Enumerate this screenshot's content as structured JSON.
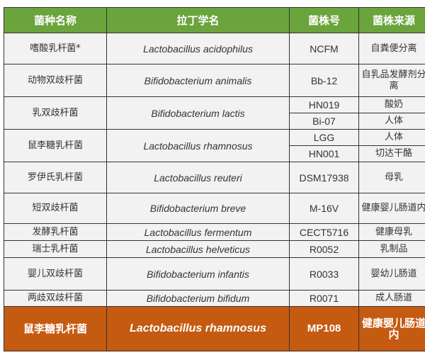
{
  "headers": [
    "菌种名称",
    "拉丁学名",
    "菌株号",
    "菌株来源"
  ],
  "rows": [
    {
      "name": "嗜酸乳杆菌*",
      "latin": "Lactobacillus  acidophilus",
      "strains": [
        {
          "code": "NCFM",
          "source": "自粪便分离"
        }
      ]
    },
    {
      "name": "动物双歧杆菌",
      "latin": "Bifidobacterium animalis",
      "strains": [
        {
          "code": "Bb-12",
          "source": "自乳品发酵剂分离"
        }
      ]
    },
    {
      "name": "乳双歧杆菌",
      "latin": "Bifidobacterium lactis",
      "strains": [
        {
          "code": "HN019",
          "source": "酸奶"
        },
        {
          "code": "Bi-07",
          "source": "人体"
        }
      ]
    },
    {
      "name": "鼠李糖乳杆菌",
      "latin": "Lactobacillus rhamnosus",
      "strains": [
        {
          "code": "LGG",
          "source": "人体"
        },
        {
          "code": "HN001",
          "source": "切达干酪"
        }
      ]
    },
    {
      "name": "罗伊氏乳杆菌",
      "latin": "Lactobacillus reuteri",
      "strains": [
        {
          "code": "DSM17938",
          "source": "母乳"
        }
      ]
    },
    {
      "name": "短双歧杆菌",
      "latin": "Bifidobacterium breve",
      "strains": [
        {
          "code": "M-16V",
          "source": "健康婴儿肠道内"
        }
      ]
    },
    {
      "name": "发酵乳杆菌",
      "latin": "Lactobacillus fermentum",
      "strains": [
        {
          "code": "CECT5716",
          "source": "健康母乳"
        }
      ]
    },
    {
      "name": "瑞士乳杆菌",
      "latin": "Lactobacillus helveticus",
      "strains": [
        {
          "code": "R0052",
          "source": "乳制品"
        }
      ]
    },
    {
      "name": "婴儿双歧杆菌",
      "latin": "Bifidobacterium infantis",
      "strains": [
        {
          "code": "R0033",
          "source": "婴幼儿肠道"
        }
      ]
    },
    {
      "name": "两歧双歧杆菌",
      "latin": "Bifidobacterium bifidum",
      "strains": [
        {
          "code": "R0071",
          "source": "成人肠道"
        }
      ]
    }
  ],
  "highlight": {
    "name": "鼠李糖乳杆菌",
    "latin": "Lactobacillus rhamnosus",
    "code": "MP108",
    "source": "健康婴儿肠道内"
  },
  "colors": {
    "header": "#6ba33d",
    "highlight": "#c55a11",
    "body": "#f2f2f2"
  }
}
